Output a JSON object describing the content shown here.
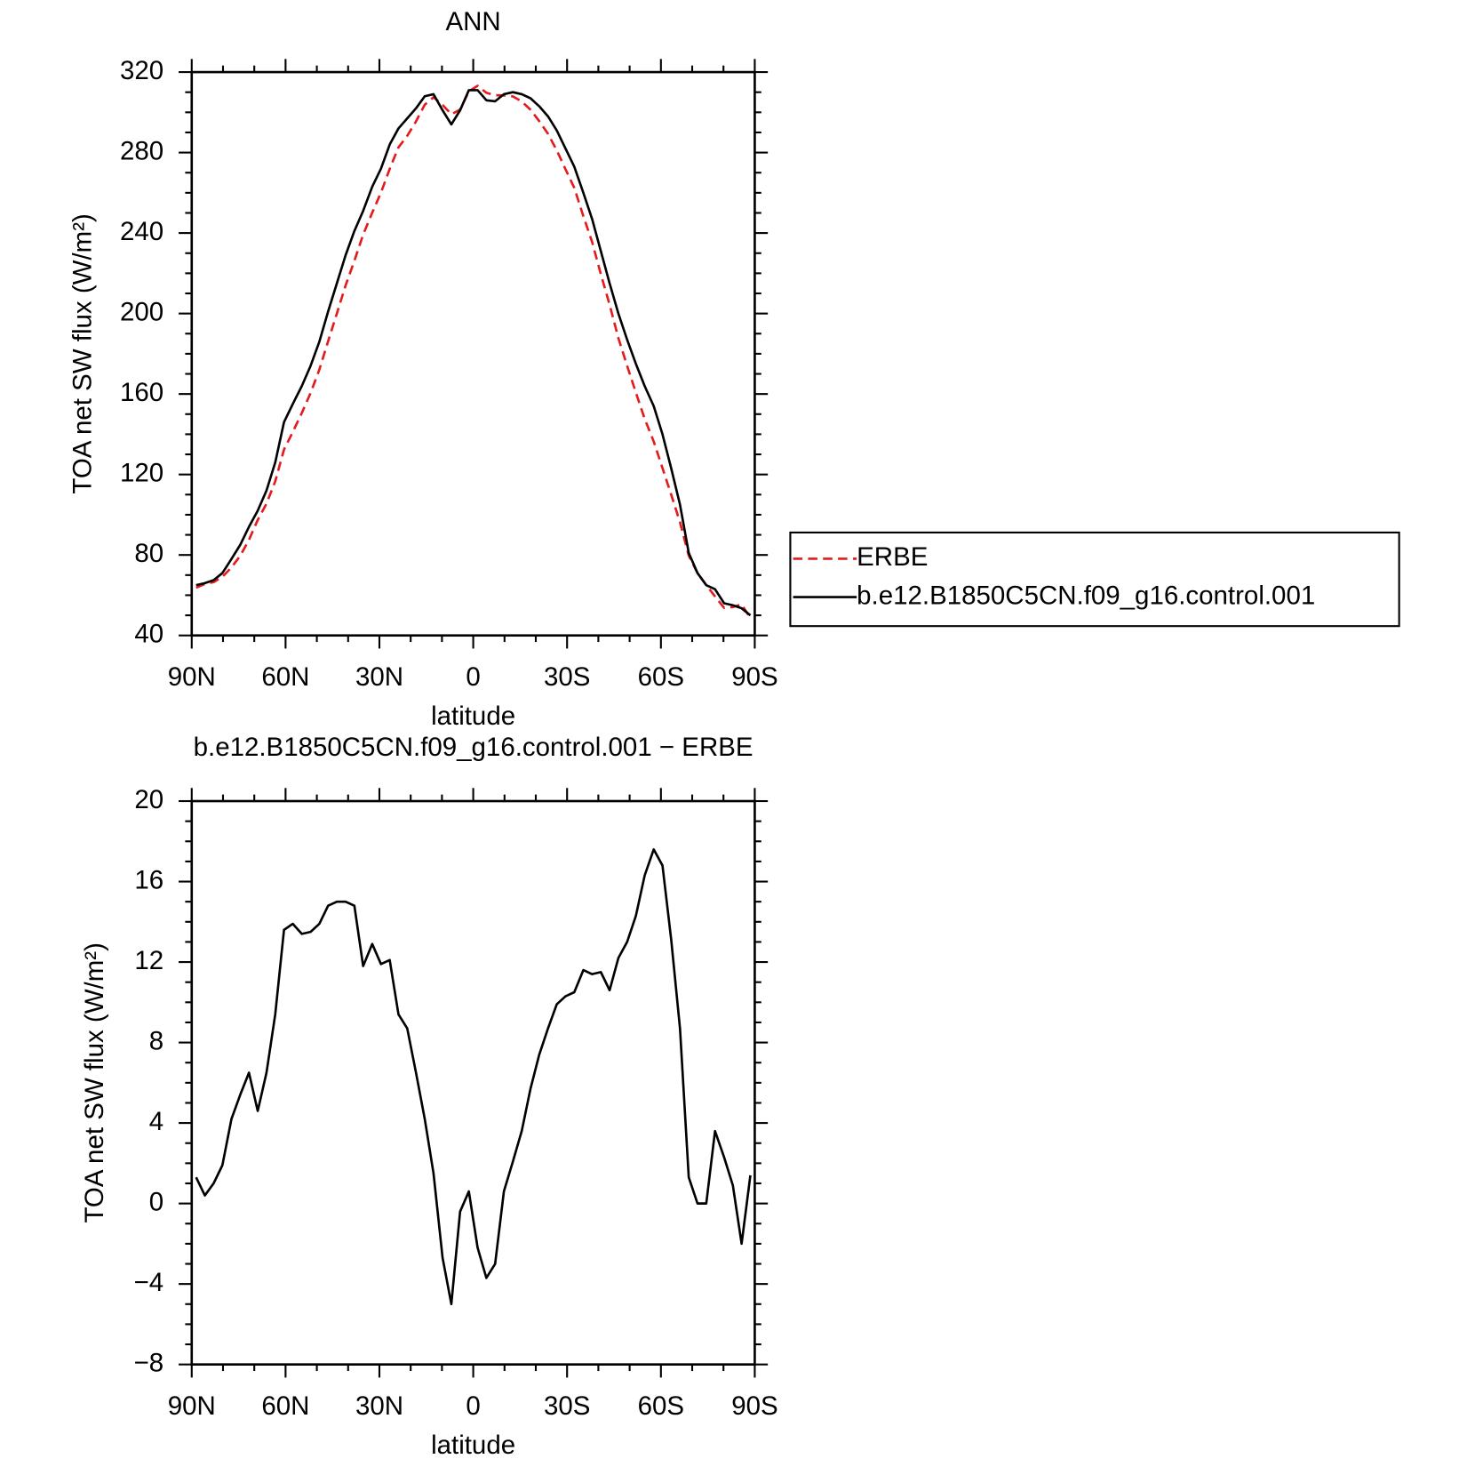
{
  "chart_data": [
    {
      "type": "line",
      "title": "ANN",
      "x_label": "latitude",
      "y_label": "TOA net SW flux (W/m²)",
      "x": [
        88.6,
        85.8,
        83.0,
        80.2,
        77.3,
        74.5,
        71.7,
        68.9,
        66.1,
        63.3,
        60.5,
        57.7,
        54.8,
        52.0,
        49.2,
        46.4,
        43.6,
        40.8,
        38.0,
        35.2,
        32.3,
        29.5,
        26.7,
        23.9,
        21.1,
        18.3,
        15.5,
        12.7,
        9.8,
        7.0,
        4.2,
        1.4,
        -1.4,
        -4.2,
        -7.0,
        -9.8,
        -12.7,
        -15.5,
        -18.3,
        -21.1,
        -23.9,
        -26.7,
        -29.5,
        -32.3,
        -35.2,
        -38.0,
        -40.8,
        -43.6,
        -46.4,
        -49.2,
        -52.0,
        -54.8,
        -57.7,
        -60.5,
        -63.3,
        -66.1,
        -68.9,
        -71.7,
        -74.5,
        -77.3,
        -80.2,
        -83.0,
        -85.8,
        -88.6
      ],
      "xlim": [
        90,
        -90
      ],
      "xticks": [
        {
          "value": 90,
          "label": "90N"
        },
        {
          "value": 60,
          "label": "60N"
        },
        {
          "value": 30,
          "label": "30N"
        },
        0,
        {
          "value": -30,
          "label": "30S"
        },
        {
          "value": -60,
          "label": "60S"
        },
        {
          "value": -90,
          "label": "90S"
        }
      ],
      "xticks_minor": [
        80,
        70,
        50,
        40,
        20,
        10,
        -10,
        -20,
        -40,
        -50,
        -70,
        -80
      ],
      "ylim": [
        40,
        320
      ],
      "yticks": [
        40,
        80,
        120,
        160,
        200,
        240,
        280,
        320
      ],
      "yticks_minor": [
        50,
        60,
        70,
        90,
        100,
        110,
        130,
        140,
        150,
        170,
        180,
        190,
        210,
        220,
        230,
        250,
        260,
        270,
        290,
        300,
        310
      ],
      "legend": "right",
      "series": [
        {
          "name": "ERBE",
          "color": "#e41a1c",
          "linestyle": "dashed",
          "values": [
            63.7,
            65.6,
            66.5,
            69.1,
            73.8,
            79.6,
            87.5,
            97.4,
            105.5,
            116.6,
            132.4,
            141.1,
            150.6,
            160.5,
            172.1,
            186.2,
            200,
            214,
            226.2,
            239.2,
            250.1,
            260.1,
            271.9,
            282.6,
            288.3,
            295.5,
            303.8,
            307.5,
            303.7,
            299,
            301.4,
            310.4,
            313.2,
            309.7,
            308.5,
            308.4,
            307.9,
            305.4,
            301.3,
            295.6,
            289.3,
            281.1,
            271.7,
            262.5,
            248.4,
            235.6,
            219.5,
            204.4,
            187.8,
            174,
            160.7,
            147.7,
            136.4,
            123.2,
            109.9,
            96.3,
            79.7,
            71,
            65,
            59.4,
            53.7,
            54.1,
            55.5,
            48.6
          ]
        },
        {
          "name": "b.e12.B1850C5CN.f09_g16.control.001",
          "color": "#000000",
          "linestyle": "solid",
          "values": [
            65,
            66,
            67.5,
            71,
            78,
            85,
            94,
            102,
            112,
            126,
            146,
            155,
            164,
            174,
            186,
            201,
            215,
            229,
            241,
            251,
            263,
            272,
            284,
            292,
            297,
            302,
            308,
            309,
            301,
            294,
            301,
            311,
            311,
            306,
            305.5,
            309,
            310,
            309,
            307,
            303,
            298,
            291,
            282,
            273,
            260,
            247,
            231,
            215,
            200,
            187,
            175,
            164,
            154,
            140,
            123,
            105,
            81,
            71,
            65,
            63,
            56,
            55,
            53.5,
            50
          ]
        }
      ]
    },
    {
      "type": "line",
      "title": "b.e12.B1850C5CN.f09_g16.control.001 − ERBE",
      "x_label": "latitude",
      "y_label": "TOA net SW flux (W/m²)",
      "x": [
        88.6,
        85.8,
        83.0,
        80.2,
        77.3,
        74.5,
        71.7,
        68.9,
        66.1,
        63.3,
        60.5,
        57.7,
        54.8,
        52.0,
        49.2,
        46.4,
        43.6,
        40.8,
        38.0,
        35.2,
        32.3,
        29.5,
        26.7,
        23.9,
        21.1,
        18.3,
        15.5,
        12.7,
        9.8,
        7.0,
        4.2,
        1.4,
        -1.4,
        -4.2,
        -7.0,
        -9.8,
        -12.7,
        -15.5,
        -18.3,
        -21.1,
        -23.9,
        -26.7,
        -29.5,
        -32.3,
        -35.2,
        -38.0,
        -40.8,
        -43.6,
        -46.4,
        -49.2,
        -52.0,
        -54.8,
        -57.7,
        -60.5,
        -63.3,
        -66.1,
        -68.9,
        -71.7,
        -74.5,
        -77.3,
        -80.2,
        -83.0,
        -85.8,
        -88.6
      ],
      "xlim": [
        90,
        -90
      ],
      "xticks": [
        {
          "value": 90,
          "label": "90N"
        },
        {
          "value": 60,
          "label": "60N"
        },
        {
          "value": 30,
          "label": "30N"
        },
        0,
        {
          "value": -30,
          "label": "30S"
        },
        {
          "value": -60,
          "label": "60S"
        },
        {
          "value": -90,
          "label": "90S"
        }
      ],
      "xticks_minor": [
        80,
        70,
        50,
        40,
        20,
        10,
        -10,
        -20,
        -40,
        -50,
        -70,
        -80
      ],
      "ylim": [
        -8,
        20
      ],
      "yticks": [
        {
          "value": -8,
          "label": "−8"
        },
        {
          "value": -4,
          "label": "−4"
        },
        0,
        4,
        8,
        12,
        16,
        20
      ],
      "yticks_minor": [
        -7,
        -6,
        -5,
        -3,
        -2,
        -1,
        1,
        2,
        3,
        5,
        6,
        7,
        9,
        10,
        11,
        13,
        14,
        15,
        17,
        18,
        19
      ],
      "series": [
        {
          "color": "#000000",
          "linestyle": "solid",
          "values": [
            1.3,
            0.4,
            1.0,
            1.9,
            4.2,
            5.4,
            6.5,
            4.6,
            6.5,
            9.4,
            13.6,
            13.9,
            13.4,
            13.5,
            13.9,
            14.8,
            15.0,
            15.0,
            14.8,
            11.8,
            12.9,
            11.9,
            12.1,
            9.4,
            8.7,
            6.5,
            4.2,
            1.5,
            -2.7,
            -5.0,
            -0.4,
            0.6,
            -2.2,
            -3.7,
            -3.0,
            0.6,
            2.1,
            3.6,
            5.7,
            7.4,
            8.7,
            9.9,
            10.3,
            10.5,
            11.6,
            11.4,
            11.5,
            10.6,
            12.2,
            13.0,
            14.3,
            16.3,
            17.6,
            16.8,
            13.1,
            8.7,
            1.3,
            0.0,
            0.0,
            3.6,
            2.3,
            0.9,
            -2.0,
            1.4
          ]
        }
      ]
    }
  ]
}
